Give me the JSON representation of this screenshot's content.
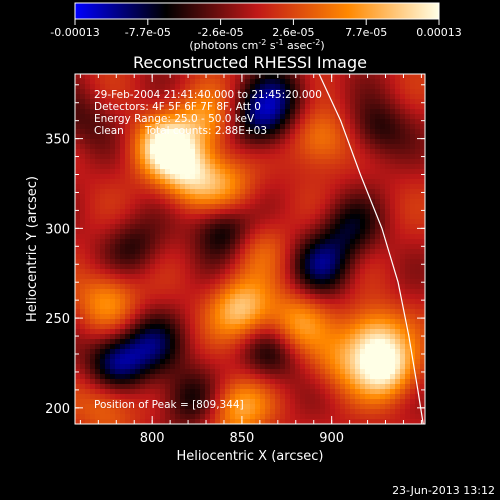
{
  "colorbar": {
    "tick_labels": [
      "-0.00013",
      "-7.7e-05",
      "-2.6e-05",
      "2.6e-05",
      "7.7e-05",
      "0.00013"
    ],
    "units_main": "(photons cm",
    "units_sup1": "-2",
    "units_mid": " s",
    "units_sup2": "-1",
    "units_end": " asec",
    "units_sup3": "-2",
    "units_close": ")",
    "range": [
      -0.00013,
      0.00013
    ],
    "colormap_stops": [
      "#0000ff",
      "#000000",
      "#c01818",
      "#ff8800",
      "#ffffe6"
    ]
  },
  "chart_data": {
    "type": "heatmap",
    "title": "Reconstructed RHESSI Image",
    "xlabel": "Heliocentric X (arcsec)",
    "ylabel": "Heliocentric Y (arcsec)",
    "xlim": [
      757,
      952
    ],
    "ylim": [
      191,
      386
    ],
    "xticks": [
      800,
      850,
      900
    ],
    "yticks": [
      200,
      250,
      300,
      350
    ],
    "grid": false,
    "peak": {
      "x": 809,
      "y": 344
    },
    "limb_curve": [
      [
        893,
        386
      ],
      [
        905,
        360
      ],
      [
        916,
        330
      ],
      [
        928,
        300
      ],
      [
        937,
        270
      ],
      [
        943,
        240
      ],
      [
        948,
        210
      ],
      [
        951,
        191
      ]
    ],
    "sources": [
      {
        "x": 808,
        "y": 345,
        "value": 0.00013
      },
      {
        "x": 822,
        "y": 330,
        "value": 9e-05
      },
      {
        "x": 930,
        "y": 222,
        "value": 0.00012
      },
      {
        "x": 923,
        "y": 240,
        "value": 9e-05
      },
      {
        "x": 850,
        "y": 255,
        "value": 0.0001
      },
      {
        "x": 848,
        "y": 200,
        "value": 8e-05
      },
      {
        "x": 893,
        "y": 350,
        "value": 7e-05
      },
      {
        "x": 775,
        "y": 260,
        "value": 7e-05
      },
      {
        "x": 880,
        "y": 247,
        "value": 7e-05
      },
      {
        "x": 842,
        "y": 322,
        "value": 6e-05
      },
      {
        "x": 775,
        "y": 203,
        "value": 6e-05
      },
      {
        "x": 830,
        "y": 360,
        "value": 7e-05
      },
      {
        "x": 905,
        "y": 225,
        "value": 5e-05
      },
      {
        "x": 860,
        "y": 290,
        "value": 4e-05
      },
      {
        "x": 780,
        "y": 225,
        "value": -0.0001
      },
      {
        "x": 800,
        "y": 235,
        "value": -7e-05
      },
      {
        "x": 840,
        "y": 300,
        "value": -8e-05
      },
      {
        "x": 860,
        "y": 360,
        "value": -9e-05
      },
      {
        "x": 872,
        "y": 375,
        "value": -6e-05
      },
      {
        "x": 895,
        "y": 280,
        "value": -8e-05
      },
      {
        "x": 910,
        "y": 300,
        "value": -6e-05
      },
      {
        "x": 925,
        "y": 355,
        "value": -6e-05
      },
      {
        "x": 820,
        "y": 205,
        "value": -6e-05
      },
      {
        "x": 866,
        "y": 230,
        "value": -6e-05
      },
      {
        "x": 790,
        "y": 290,
        "value": -5e-05
      },
      {
        "x": 760,
        "y": 360,
        "value": -4e-05
      }
    ]
  },
  "annotation": {
    "time_range": "29-Feb-2004 21:41:40.000 to 21:45:20.000",
    "detectors": "Detectors: 4F 5F 6F 7F 8F, Att 0",
    "energy": "Energy Range: 25.0 - 50.0 keV",
    "method": "Clean",
    "counts": "Total counts: 2.88E+03",
    "peak_label": "Position of Peak = [809,344]"
  },
  "footer": {
    "date": "23-Jun-2013 13:12"
  }
}
